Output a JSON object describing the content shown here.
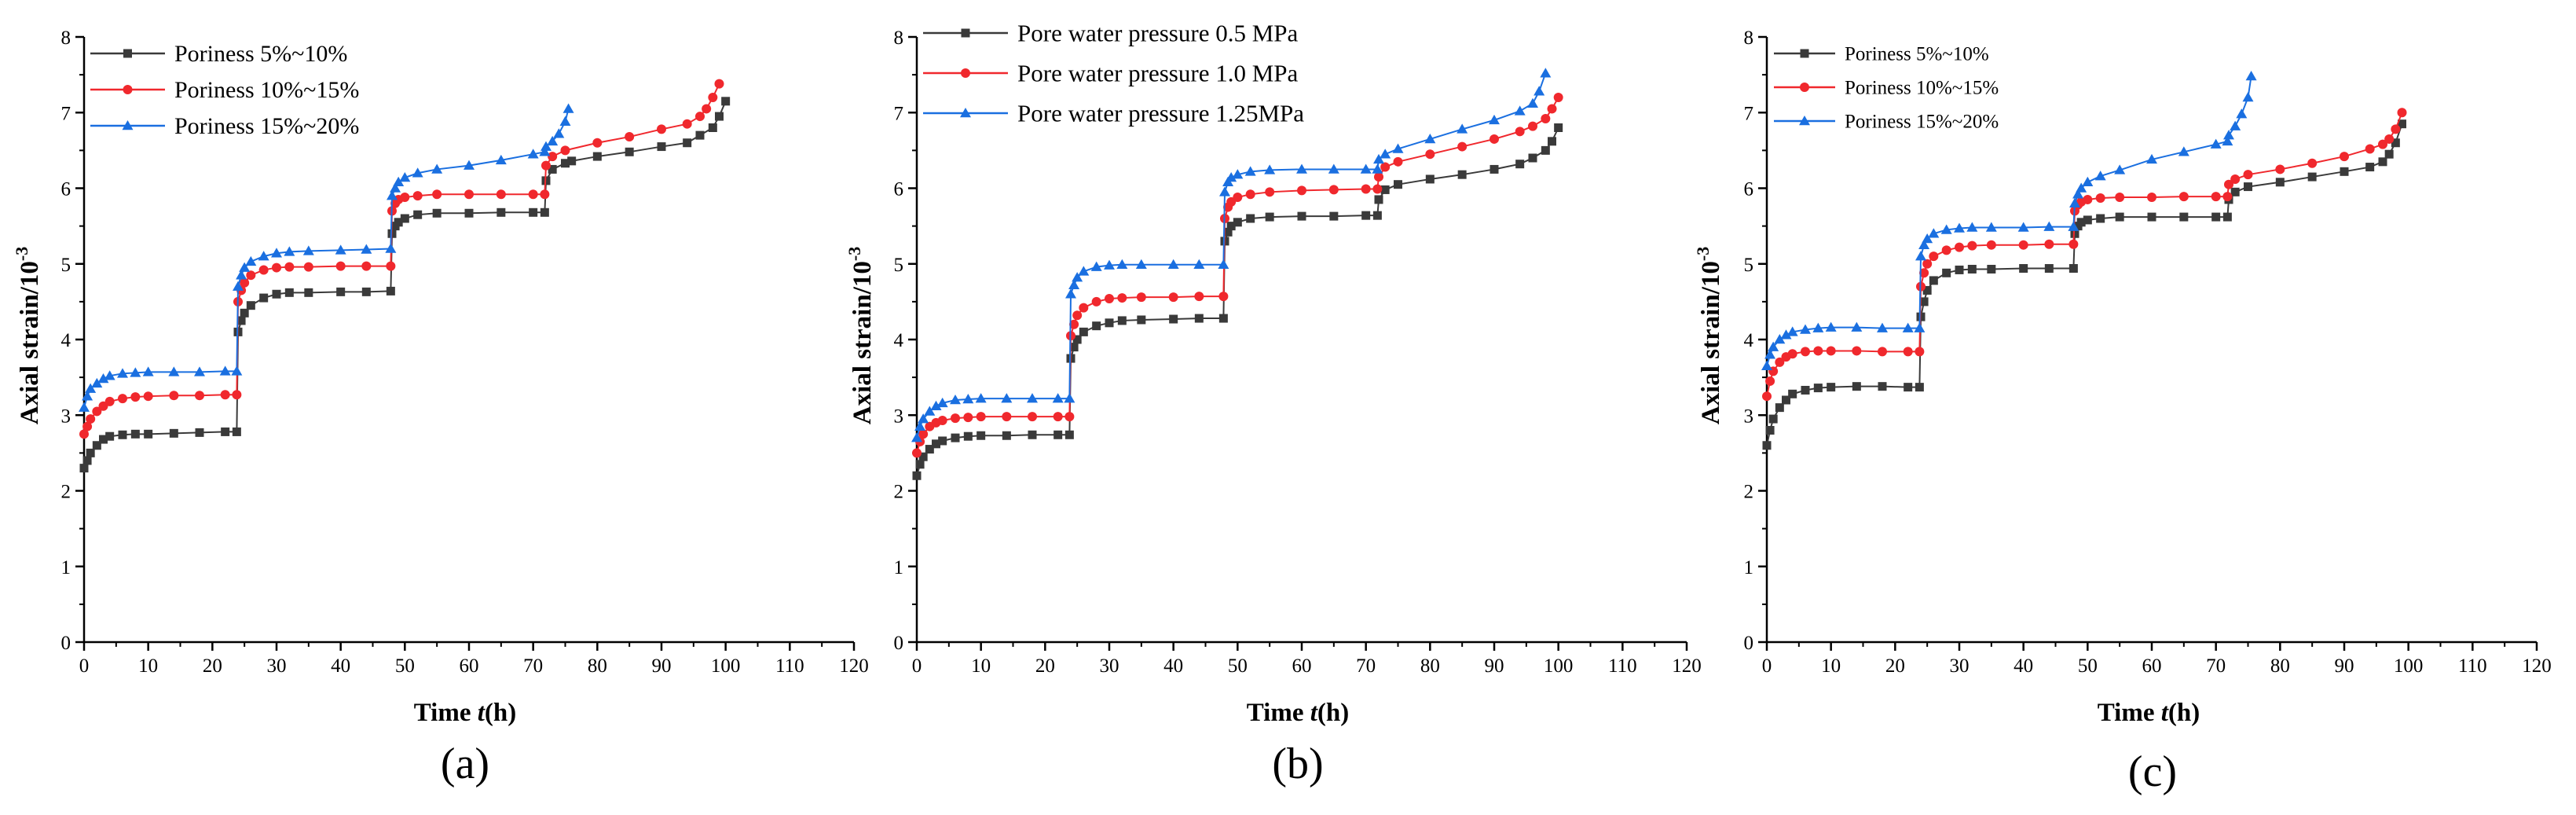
{
  "colors": {
    "black": "#3a3a3a",
    "red": "#f0282d",
    "blue": "#1a6fe0",
    "axis": "#000000"
  },
  "chart_data": [
    {
      "type": "line",
      "panel_label": "(a)",
      "xlabel_main": "Time ",
      "xlabel_var": "t",
      "xlabel_unit": "(h)",
      "ylabel": "Axial strain/10",
      "ylabel_exp": "-3",
      "xlim": [
        0,
        120
      ],
      "ylim": [
        0,
        8
      ],
      "xticks": [
        "0",
        "10",
        "20",
        "30",
        "40",
        "50",
        "60",
        "70",
        "80",
        "90",
        "100",
        "110",
        "120"
      ],
      "yticks": [
        "0",
        "1",
        "2",
        "3",
        "4",
        "5",
        "6",
        "7",
        "8"
      ],
      "legend_position": "top-left",
      "series": [
        {
          "name": "Poriness 5%~10%",
          "color": "#3a3a3a",
          "marker": "square",
          "x": [
            0,
            0.5,
            1,
            2,
            3,
            4,
            6,
            8,
            10,
            14,
            18,
            22,
            23.8,
            24,
            24.5,
            25,
            26,
            28,
            30,
            32,
            35,
            40,
            44,
            47.8,
            48,
            48.5,
            49,
            50,
            52,
            55,
            60,
            65,
            70,
            71.8,
            72,
            73,
            75,
            76,
            80,
            85,
            90,
            94,
            96,
            98,
            99,
            100
          ],
          "y": [
            2.3,
            2.4,
            2.5,
            2.6,
            2.68,
            2.72,
            2.74,
            2.75,
            2.75,
            2.76,
            2.77,
            2.78,
            2.78,
            4.1,
            4.25,
            4.35,
            4.45,
            4.55,
            4.6,
            4.62,
            4.62,
            4.63,
            4.63,
            4.64,
            5.4,
            5.5,
            5.55,
            5.6,
            5.65,
            5.67,
            5.67,
            5.68,
            5.68,
            5.68,
            6.1,
            6.25,
            6.33,
            6.36,
            6.42,
            6.48,
            6.55,
            6.6,
            6.7,
            6.8,
            6.95,
            7.15
          ]
        },
        {
          "name": "Poriness 10%~15%",
          "color": "#f0282d",
          "marker": "circle",
          "x": [
            0,
            0.5,
            1,
            2,
            3,
            4,
            6,
            8,
            10,
            14,
            18,
            22,
            23.8,
            24,
            24.5,
            25,
            26,
            28,
            30,
            32,
            35,
            40,
            44,
            47.8,
            48,
            48.5,
            49,
            50,
            52,
            55,
            60,
            65,
            70,
            71.8,
            72,
            73,
            75,
            80,
            85,
            90,
            94,
            96,
            97,
            98,
            99
          ],
          "y": [
            2.75,
            2.85,
            2.95,
            3.05,
            3.12,
            3.18,
            3.22,
            3.24,
            3.25,
            3.26,
            3.26,
            3.27,
            3.27,
            4.5,
            4.65,
            4.75,
            4.85,
            4.92,
            4.95,
            4.96,
            4.96,
            4.97,
            4.97,
            4.97,
            5.7,
            5.8,
            5.85,
            5.88,
            5.9,
            5.92,
            5.92,
            5.92,
            5.92,
            5.92,
            6.3,
            6.42,
            6.5,
            6.6,
            6.68,
            6.78,
            6.85,
            6.95,
            7.05,
            7.2,
            7.38
          ]
        },
        {
          "name": "Poriness 15%~20%",
          "color": "#1a6fe0",
          "marker": "triangle",
          "x": [
            0,
            0.5,
            1,
            2,
            3,
            4,
            6,
            8,
            10,
            14,
            18,
            22,
            23.8,
            24,
            24.5,
            25,
            26,
            28,
            30,
            32,
            35,
            40,
            44,
            47.8,
            48,
            48.5,
            49,
            50,
            52,
            55,
            60,
            65,
            70,
            71.8,
            72,
            73,
            74,
            75,
            75.5
          ],
          "y": [
            3.1,
            3.25,
            3.35,
            3.42,
            3.48,
            3.52,
            3.55,
            3.56,
            3.57,
            3.57,
            3.57,
            3.58,
            3.58,
            4.7,
            4.85,
            4.95,
            5.03,
            5.1,
            5.14,
            5.16,
            5.17,
            5.18,
            5.19,
            5.2,
            5.9,
            6.0,
            6.08,
            6.14,
            6.2,
            6.25,
            6.3,
            6.37,
            6.45,
            6.48,
            6.55,
            6.62,
            6.72,
            6.88,
            7.05
          ]
        }
      ]
    },
    {
      "type": "line",
      "panel_label": "(b)",
      "xlabel_main": "Time ",
      "xlabel_var": "t",
      "xlabel_unit": "(h)",
      "ylabel": "Axial strain/10",
      "ylabel_exp": "-3",
      "xlim": [
        0,
        120
      ],
      "ylim": [
        0,
        8
      ],
      "xticks": [
        "0",
        "10",
        "20",
        "30",
        "40",
        "50",
        "60",
        "70",
        "80",
        "90",
        "100",
        "110",
        "120"
      ],
      "yticks": [
        "0",
        "1",
        "2",
        "3",
        "4",
        "5",
        "6",
        "7",
        "8"
      ],
      "legend_position": "top-left",
      "series": [
        {
          "name": "Pore water pressure 0.5 MPa",
          "color": "#3a3a3a",
          "marker": "square",
          "x": [
            0,
            0.5,
            1,
            2,
            3,
            4,
            6,
            8,
            10,
            14,
            18,
            22,
            23.8,
            24,
            24.5,
            25,
            26,
            28,
            30,
            32,
            35,
            40,
            44,
            47.8,
            48,
            48.5,
            49,
            50,
            52,
            55,
            60,
            65,
            70,
            71.8,
            72,
            73,
            75,
            80,
            85,
            90,
            94,
            96,
            98,
            99,
            100
          ],
          "y": [
            2.2,
            2.35,
            2.45,
            2.55,
            2.62,
            2.66,
            2.7,
            2.72,
            2.73,
            2.73,
            2.74,
            2.74,
            2.74,
            3.75,
            3.9,
            4.0,
            4.1,
            4.18,
            4.22,
            4.25,
            4.26,
            4.27,
            4.28,
            4.28,
            5.3,
            5.42,
            5.5,
            5.55,
            5.6,
            5.62,
            5.63,
            5.63,
            5.64,
            5.64,
            5.85,
            5.98,
            6.05,
            6.12,
            6.18,
            6.25,
            6.32,
            6.4,
            6.5,
            6.62,
            6.8
          ]
        },
        {
          "name": "Pore water pressure 1.0 MPa",
          "color": "#f0282d",
          "marker": "circle",
          "x": [
            0,
            0.5,
            1,
            2,
            3,
            4,
            6,
            8,
            10,
            14,
            18,
            22,
            23.8,
            24,
            24.5,
            25,
            26,
            28,
            30,
            32,
            35,
            40,
            44,
            47.8,
            48,
            48.5,
            49,
            50,
            52,
            55,
            60,
            65,
            70,
            71.8,
            72,
            73,
            75,
            80,
            85,
            90,
            94,
            96,
            98,
            99,
            100
          ],
          "y": [
            2.5,
            2.65,
            2.75,
            2.85,
            2.9,
            2.93,
            2.96,
            2.97,
            2.98,
            2.98,
            2.98,
            2.98,
            2.98,
            4.05,
            4.2,
            4.32,
            4.42,
            4.5,
            4.54,
            4.55,
            4.56,
            4.56,
            4.57,
            4.57,
            5.6,
            5.75,
            5.82,
            5.88,
            5.92,
            5.95,
            5.97,
            5.98,
            5.99,
            5.99,
            6.15,
            6.28,
            6.35,
            6.45,
            6.55,
            6.65,
            6.75,
            6.82,
            6.92,
            7.05,
            7.2
          ]
        },
        {
          "name": "Pore water pressure 1.25MPa",
          "color": "#1a6fe0",
          "marker": "triangle",
          "x": [
            0,
            0.5,
            1,
            2,
            3,
            4,
            6,
            8,
            10,
            14,
            18,
            22,
            23.8,
            24,
            24.5,
            25,
            26,
            28,
            30,
            32,
            35,
            40,
            44,
            47.8,
            48,
            48.5,
            49,
            50,
            52,
            55,
            60,
            65,
            70,
            71.8,
            72,
            73,
            75,
            80,
            85,
            90,
            94,
            96,
            97,
            98
          ],
          "y": [
            2.7,
            2.85,
            2.95,
            3.05,
            3.12,
            3.16,
            3.2,
            3.21,
            3.22,
            3.22,
            3.22,
            3.22,
            3.22,
            4.6,
            4.72,
            4.82,
            4.9,
            4.96,
            4.98,
            4.99,
            4.99,
            4.99,
            4.99,
            4.99,
            5.95,
            6.08,
            6.14,
            6.18,
            6.22,
            6.24,
            6.25,
            6.25,
            6.25,
            6.25,
            6.38,
            6.45,
            6.52,
            6.65,
            6.78,
            6.9,
            7.02,
            7.12,
            7.28,
            7.52
          ]
        }
      ]
    },
    {
      "type": "line",
      "panel_label": "(c)",
      "xlabel_main": "Time ",
      "xlabel_var": "t",
      "xlabel_unit": "(h)",
      "ylabel": "Axial strain/10",
      "ylabel_exp": "-3",
      "xlim": [
        0,
        120
      ],
      "ylim": [
        0,
        8
      ],
      "xticks": [
        "0",
        "10",
        "20",
        "30",
        "40",
        "50",
        "60",
        "70",
        "80",
        "90",
        "100",
        "110",
        "120"
      ],
      "yticks": [
        "0",
        "1",
        "2",
        "3",
        "4",
        "5",
        "6",
        "7",
        "8"
      ],
      "legend_position": "top-left",
      "series": [
        {
          "name": "Poriness 5%~10%",
          "color": "#3a3a3a",
          "marker": "square",
          "x": [
            0,
            0.5,
            1,
            2,
            3,
            4,
            6,
            8,
            10,
            14,
            18,
            22,
            23.8,
            24,
            24.5,
            25,
            26,
            28,
            30,
            32,
            35,
            40,
            44,
            47.8,
            48,
            48.5,
            49,
            50,
            52,
            55,
            60,
            65,
            70,
            71.8,
            72,
            73,
            75,
            80,
            85,
            90,
            94,
            96,
            97,
            98,
            99
          ],
          "y": [
            2.6,
            2.8,
            2.95,
            3.1,
            3.2,
            3.28,
            3.33,
            3.36,
            3.37,
            3.38,
            3.38,
            3.37,
            3.37,
            4.3,
            4.5,
            4.65,
            4.78,
            4.88,
            4.92,
            4.93,
            4.93,
            4.94,
            4.94,
            4.94,
            5.4,
            5.5,
            5.55,
            5.58,
            5.6,
            5.62,
            5.62,
            5.62,
            5.62,
            5.62,
            5.85,
            5.95,
            6.02,
            6.08,
            6.15,
            6.22,
            6.28,
            6.35,
            6.45,
            6.6,
            6.85
          ]
        },
        {
          "name": "Poriness 10%~15%",
          "color": "#f0282d",
          "marker": "circle",
          "x": [
            0,
            0.5,
            1,
            2,
            3,
            4,
            6,
            8,
            10,
            14,
            18,
            22,
            23.8,
            24,
            24.5,
            25,
            26,
            28,
            30,
            32,
            35,
            40,
            44,
            47.8,
            48,
            48.5,
            49,
            50,
            52,
            55,
            60,
            65,
            70,
            71.8,
            72,
            73,
            75,
            80,
            85,
            90,
            94,
            96,
            97,
            98,
            99
          ],
          "y": [
            3.25,
            3.45,
            3.58,
            3.7,
            3.77,
            3.81,
            3.84,
            3.85,
            3.85,
            3.85,
            3.84,
            3.84,
            3.84,
            4.7,
            4.88,
            5.0,
            5.1,
            5.18,
            5.22,
            5.24,
            5.25,
            5.25,
            5.26,
            5.26,
            5.7,
            5.78,
            5.82,
            5.85,
            5.87,
            5.88,
            5.88,
            5.89,
            5.89,
            5.89,
            6.05,
            6.12,
            6.18,
            6.25,
            6.33,
            6.42,
            6.52,
            6.58,
            6.65,
            6.78,
            7.0
          ]
        },
        {
          "name": "Poriness 15%~20%",
          "color": "#1a6fe0",
          "marker": "triangle",
          "x": [
            0,
            0.5,
            1,
            2,
            3,
            4,
            6,
            8,
            10,
            14,
            18,
            22,
            23.8,
            24,
            24.5,
            25,
            26,
            28,
            30,
            32,
            35,
            40,
            44,
            47.8,
            48,
            48.5,
            49,
            50,
            52,
            55,
            60,
            65,
            70,
            71.8,
            72,
            73,
            74,
            75,
            75.5
          ],
          "y": [
            3.65,
            3.8,
            3.9,
            4.0,
            4.06,
            4.1,
            4.13,
            4.15,
            4.16,
            4.16,
            4.15,
            4.15,
            4.15,
            5.1,
            5.25,
            5.33,
            5.4,
            5.45,
            5.47,
            5.48,
            5.48,
            5.48,
            5.49,
            5.49,
            5.8,
            5.92,
            6.0,
            6.08,
            6.16,
            6.24,
            6.38,
            6.48,
            6.58,
            6.62,
            6.7,
            6.82,
            6.98,
            7.2,
            7.48
          ]
        }
      ]
    }
  ]
}
